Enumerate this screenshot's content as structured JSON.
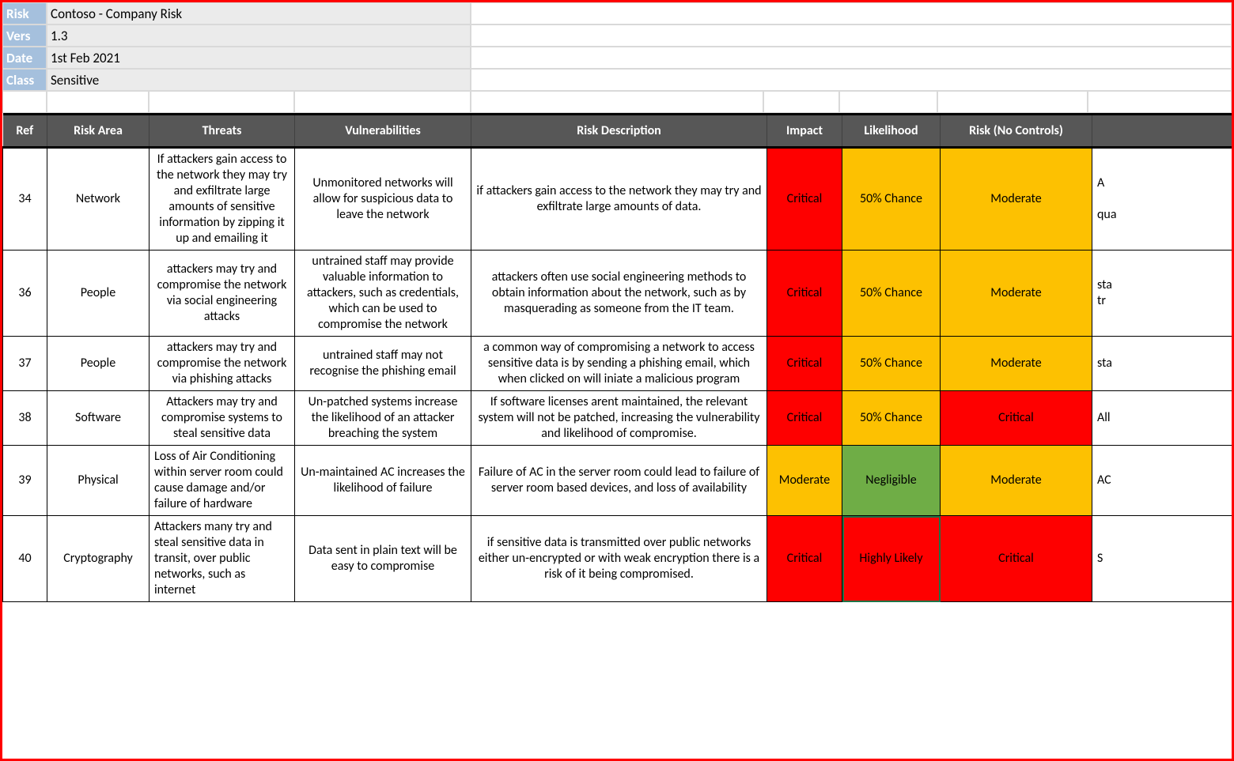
{
  "meta": {
    "labels": {
      "risk": "Risk",
      "version": "Vers",
      "date": "Date",
      "class": "Class"
    },
    "values": {
      "risk": "Contoso - Company Risk",
      "version": "1.3",
      "date": "1st Feb 2021",
      "class": "Sensitive"
    }
  },
  "table": {
    "headers": {
      "ref": "Ref",
      "area": "Risk Area",
      "threats": "Threats",
      "vuln": "Vulnerabilities",
      "desc": "Risk Description",
      "impact": "Impact",
      "likelihood": "Likelihood",
      "risk": "Risk (No Controls)",
      "extra": ""
    },
    "colors": {
      "Critical": "#fe0000",
      "Moderate": "#fdc101",
      "Negligible": "#6fad46",
      "Highly Likely": "#fe0000",
      "50% Chance": "#fdc101"
    },
    "rows": [
      {
        "ref": "34",
        "area": "Network",
        "threats": "If attackers gain access to the network they may try and exfiltrate large amounts of sensitive information by zipping it up and emailing it",
        "vuln": "Unmonitored networks will allow for suspicious data to leave the network",
        "desc": "if attackers gain access to the network they may try and exfiltrate large amounts of data.",
        "impact": "Critical",
        "likelihood": "50% Chance",
        "risk": "Moderate",
        "extra": "A\n\nqua"
      },
      {
        "ref": "36",
        "area": "People",
        "threats": "attackers may try and compromise the network via social engineering attacks",
        "vuln": "untrained staff may provide valuable information to attackers, such as credentials, which can be used to compromise the network",
        "desc": "attackers often use social engineering methods to obtain information about the network, such as by masquerading as someone from the IT team.",
        "impact": "Critical",
        "likelihood": "50% Chance",
        "risk": "Moderate",
        "extra": "sta\ntr"
      },
      {
        "ref": "37",
        "area": "People",
        "threats": "attackers may try and compromise the network via phishing attacks",
        "vuln": "untrained staff may not recognise the phishing email",
        "desc": "a common way of compromising a network to access sensitive data is by sending a phishing email, which when clicked on will iniate a malicious program",
        "impact": "Critical",
        "likelihood": "50% Chance",
        "risk": "Moderate",
        "extra": "sta"
      },
      {
        "ref": "38",
        "area": "Software",
        "threats": "Attackers may try and compromise systems to steal sensitive data",
        "vuln": "Un-patched systems increase the likelihood of an attacker breaching the system",
        "desc": "If software licenses arent maintained, the relevant system will not be patched, increasing the vulnerability and likelihood of compromise.",
        "impact": "Critical",
        "likelihood": "50% Chance",
        "risk": "Critical",
        "extra": "All"
      },
      {
        "ref": "39",
        "area": "Physical",
        "threats": "Loss of Air Conditioning within server room could cause damage and/or failure of hardware",
        "threats_align": "left",
        "vuln": "Un-maintained AC increases the likelihood of failure",
        "desc": "Failure of AC in the server room could lead to failure of server room based devices, and loss of availability",
        "impact": "Moderate",
        "likelihood": "Negligible",
        "risk": "Moderate",
        "extra": "AC"
      },
      {
        "ref": "40",
        "area": "Cryptography",
        "threats": "Attackers many try and steal sensitive data in transit, over public networks, such as internet",
        "threats_align": "left",
        "vuln": "Data sent in plain text will be easy to compromise",
        "desc": "if sensitive data is transmitted over public networks either un-encrypted or with weak encryption there is a risk of it being compromised.",
        "impact": "Critical",
        "likelihood": "Highly Likely",
        "likelihood_selected": true,
        "risk": "Critical",
        "extra": "S"
      }
    ]
  }
}
